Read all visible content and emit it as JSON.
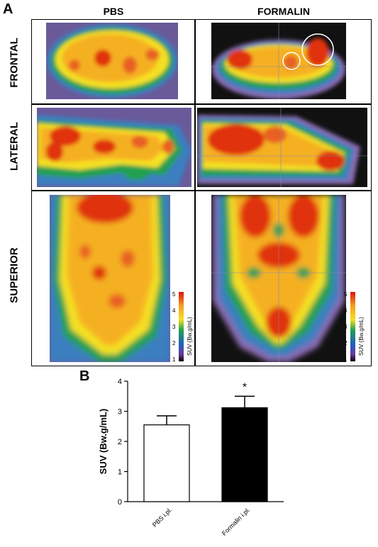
{
  "panel_a": {
    "letter": "A",
    "columns": [
      "PBS",
      "FORMALIN"
    ],
    "rows": [
      "FRONTAL",
      "LATERAL",
      "SUPERIOR"
    ],
    "colorbar": {
      "label": "SUV (Bw.g/mL)",
      "ticks": [
        "5",
        "4",
        "3",
        "2",
        "1"
      ]
    }
  },
  "panel_b": {
    "letter": "B",
    "significance": "*"
  },
  "chart_data": {
    "type": "bar",
    "categories": [
      "PBS i.pl.",
      "Formalin i.pl."
    ],
    "values": [
      2.55,
      3.12
    ],
    "errors": [
      0.3,
      0.38
    ],
    "bar_colors": [
      "#ffffff",
      "#000000"
    ],
    "title": "",
    "xlabel": "",
    "ylabel": "SUV (Bw.g/mL)",
    "ylim": [
      0,
      4
    ],
    "yticks": [
      0,
      1,
      2,
      3,
      4
    ],
    "grid": false
  }
}
